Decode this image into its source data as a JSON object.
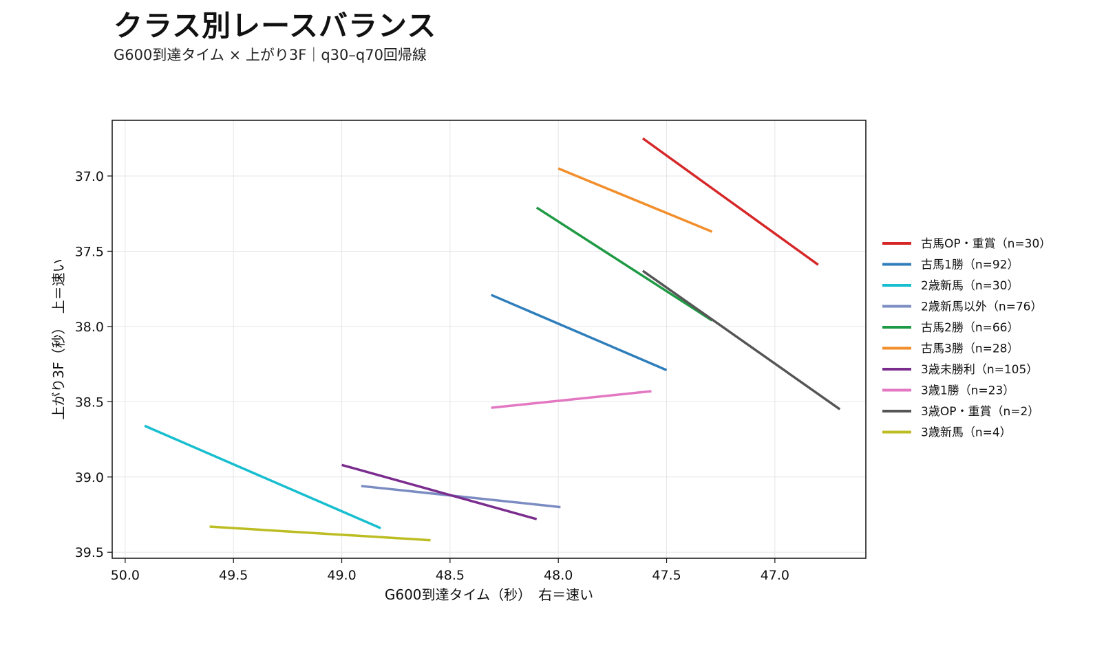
{
  "chart_data": {
    "type": "line",
    "title": "クラス別レースバランス",
    "subtitle": "G600到達タイム × 上がり3F｜q30–q70回帰線",
    "xlabel": "G600到達タイム（秒）　右＝速い",
    "ylabel": "上がり3F（秒）　上＝速い",
    "xlim": [
      50.06,
      46.58
    ],
    "ylim": [
      39.54,
      36.63
    ],
    "x_reversed": true,
    "y_reversed": true,
    "xticks": [
      50.0,
      49.5,
      49.0,
      48.5,
      48.0,
      47.5,
      47.0
    ],
    "xtick_labels": [
      "50.0",
      "49.5",
      "49.0",
      "48.5",
      "48.0",
      "47.5",
      "47.0"
    ],
    "yticks": [
      37.0,
      37.5,
      38.0,
      38.5,
      39.0,
      39.5
    ],
    "ytick_labels": [
      "37.0",
      "37.5",
      "38.0",
      "38.5",
      "39.0",
      "39.5"
    ],
    "grid": true,
    "legend_position": "right",
    "series": [
      {
        "name": "古馬OP・重賞（n=30）",
        "color": "#d62728",
        "x": [
          47.61,
          46.8
        ],
        "y": [
          36.75,
          37.59
        ]
      },
      {
        "name": "古馬1勝（n=92）",
        "color": "#2f7ebc",
        "x": [
          48.31,
          47.5
        ],
        "y": [
          37.79,
          38.29
        ]
      },
      {
        "name": "2歳新馬（n=30）",
        "color": "#17becf",
        "x": [
          49.91,
          48.82
        ],
        "y": [
          38.66,
          39.34
        ]
      },
      {
        "name": "2歳新馬以外（n=76）",
        "color": "#7b8cc3",
        "x": [
          48.91,
          47.99
        ],
        "y": [
          39.06,
          39.2
        ]
      },
      {
        "name": "古馬2勝（n=66）",
        "color": "#1f9a44",
        "x": [
          48.1,
          47.29
        ],
        "y": [
          37.21,
          37.96
        ]
      },
      {
        "name": "古馬3勝（n=28）",
        "color": "#f28e2b",
        "x": [
          48.0,
          47.29
        ],
        "y": [
          36.95,
          37.37
        ]
      },
      {
        "name": "3歳未勝利（n=105）",
        "color": "#7b2d8e",
        "x": [
          49.0,
          48.1
        ],
        "y": [
          38.92,
          39.28
        ]
      },
      {
        "name": "3歳1勝（n=23）",
        "color": "#e377c2",
        "x": [
          48.31,
          47.57
        ],
        "y": [
          38.54,
          38.43
        ]
      },
      {
        "name": "3歳OP・重賞（n=2）",
        "color": "#555555",
        "x": [
          47.61,
          46.7
        ],
        "y": [
          37.63,
          38.55
        ]
      },
      {
        "name": "3歳新馬（n=4）",
        "color": "#bcbd22",
        "x": [
          49.61,
          48.59
        ],
        "y": [
          39.33,
          39.42
        ]
      }
    ]
  }
}
